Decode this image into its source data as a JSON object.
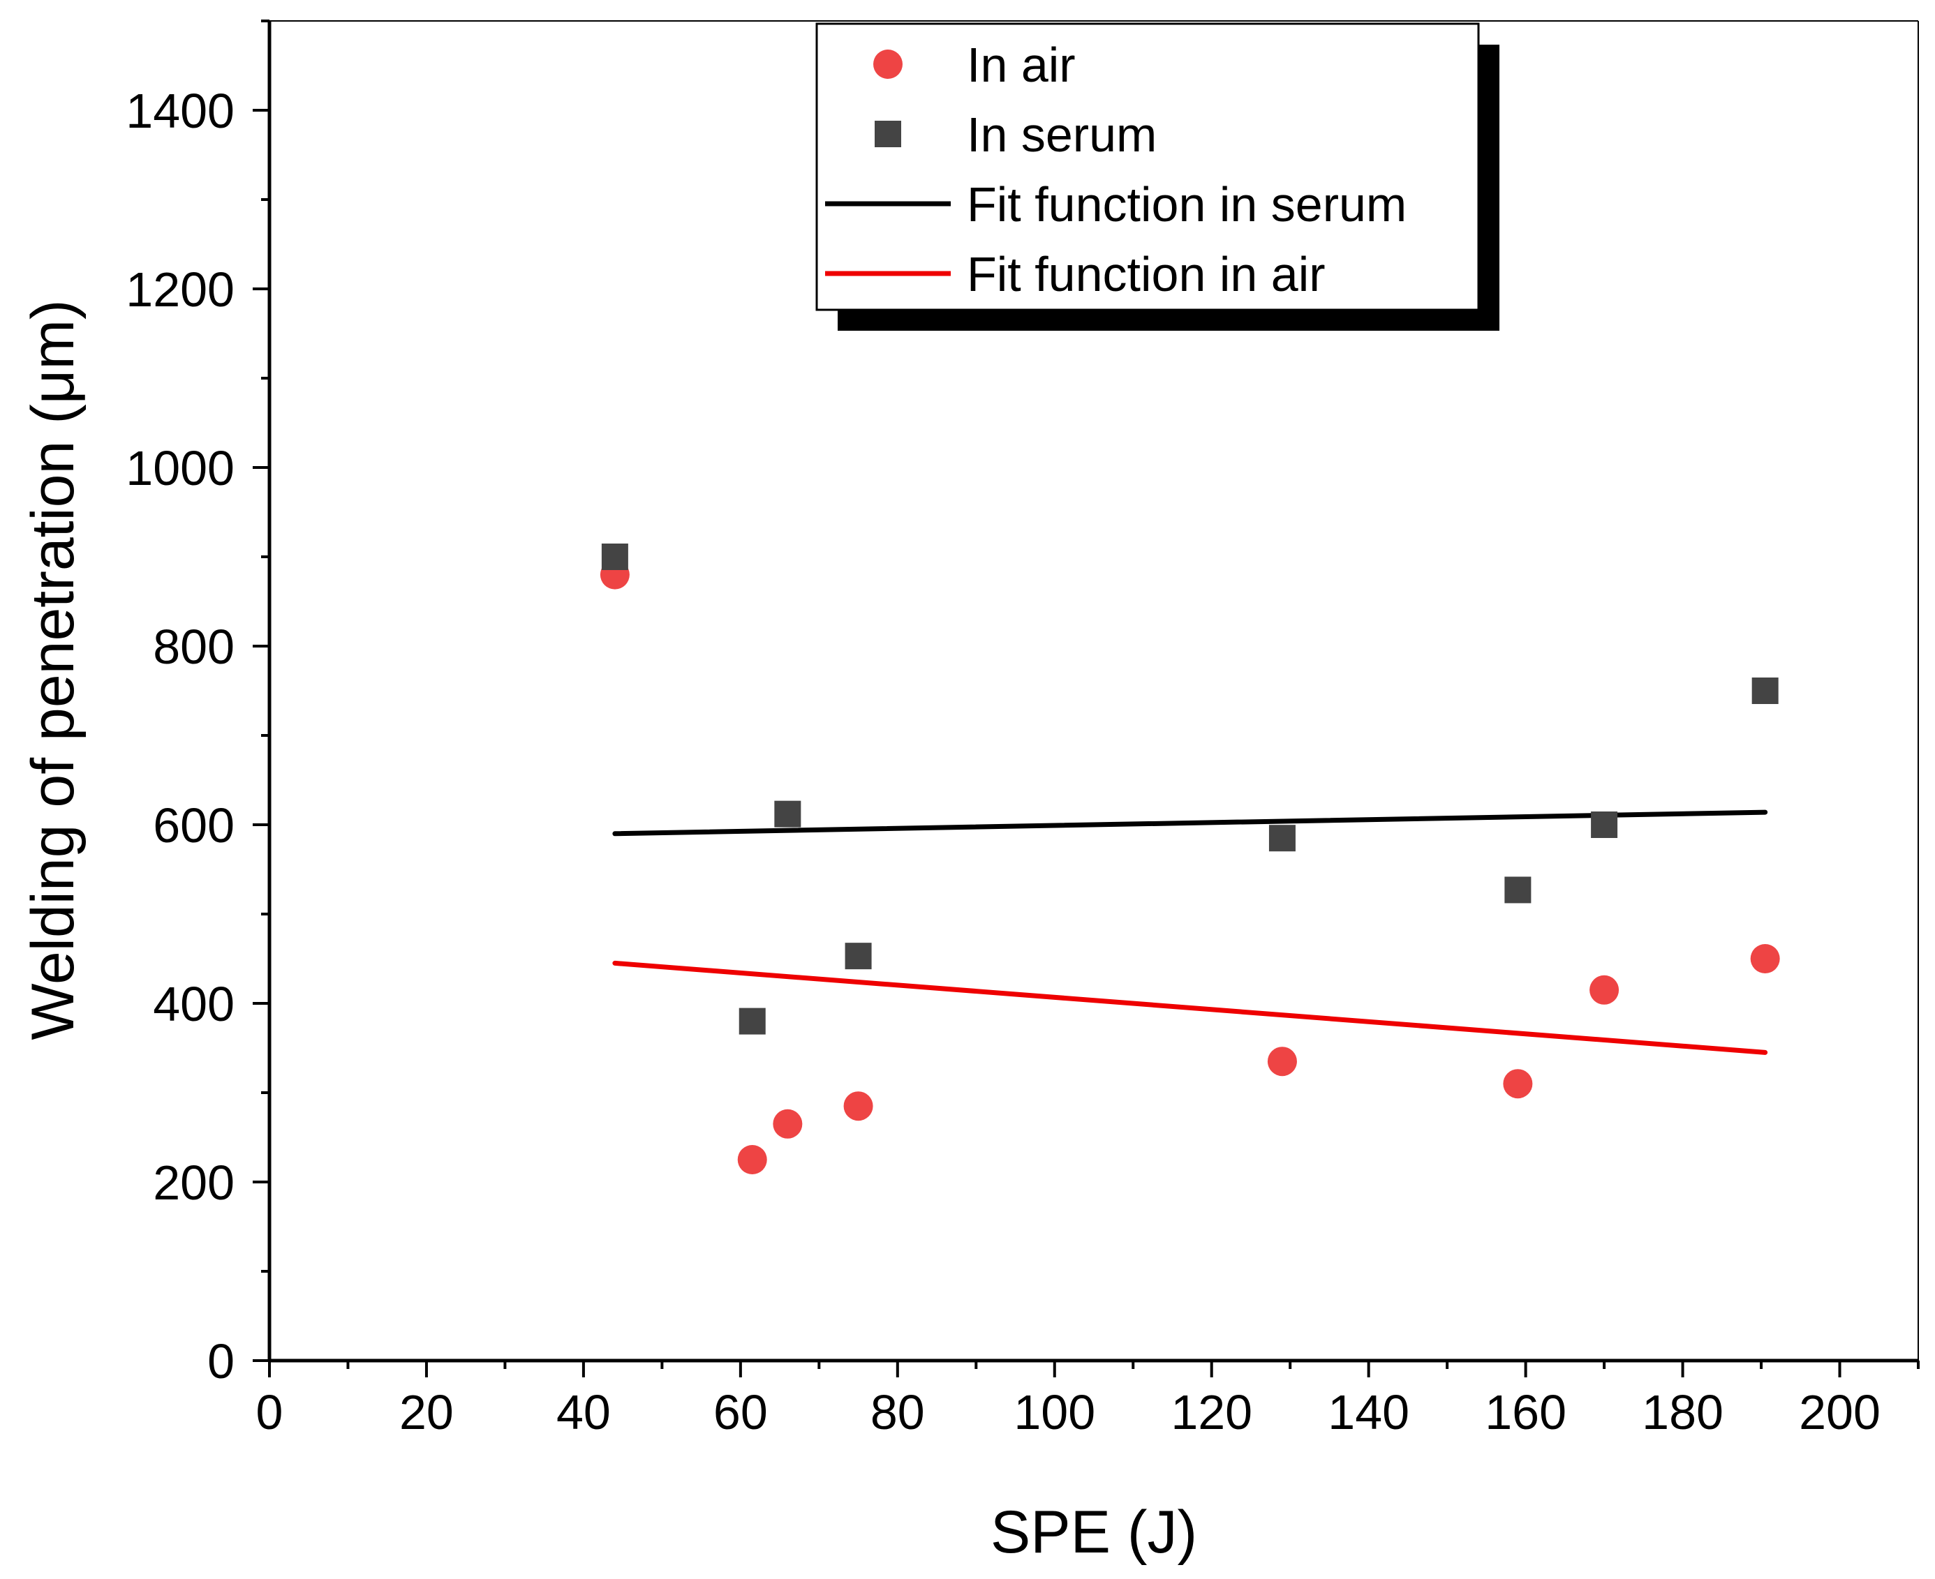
{
  "chart_data": {
    "type": "scatter",
    "title": "",
    "xlabel": "SPE (J)",
    "ylabel": "Welding of penetration (μm)",
    "xlim": [
      0,
      210
    ],
    "ylim": [
      0,
      1500
    ],
    "x_ticks": [
      0,
      20,
      40,
      60,
      80,
      100,
      120,
      140,
      160,
      180,
      200
    ],
    "y_ticks": [
      0,
      200,
      400,
      600,
      800,
      1000,
      1200,
      1400
    ],
    "x_minor_step": 10,
    "y_minor_step": 100,
    "grid": false,
    "legend_position": "top-center",
    "series": [
      {
        "name": "In air",
        "kind": "scatter",
        "marker": "circle",
        "color": "#ee4444",
        "points": [
          [
            44,
            880
          ],
          [
            61.5,
            225
          ],
          [
            66,
            265
          ],
          [
            75,
            285
          ],
          [
            129,
            335
          ],
          [
            159,
            310
          ],
          [
            170,
            415
          ],
          [
            190.5,
            450
          ]
        ]
      },
      {
        "name": "In serum",
        "kind": "scatter",
        "marker": "square",
        "color": "#444444",
        "points": [
          [
            44,
            900
          ],
          [
            61.5,
            380
          ],
          [
            66,
            612
          ],
          [
            75,
            453
          ],
          [
            129,
            585
          ],
          [
            159,
            527
          ],
          [
            170,
            600
          ],
          [
            190.5,
            750
          ]
        ]
      },
      {
        "name": "Fit function in serum",
        "kind": "line",
        "color": "#000000",
        "points": [
          [
            44,
            590
          ],
          [
            190.5,
            614
          ]
        ]
      },
      {
        "name": "Fit function in air",
        "kind": "line",
        "color": "#ee0000",
        "points": [
          [
            44,
            445
          ],
          [
            190.5,
            345
          ]
        ]
      }
    ]
  }
}
